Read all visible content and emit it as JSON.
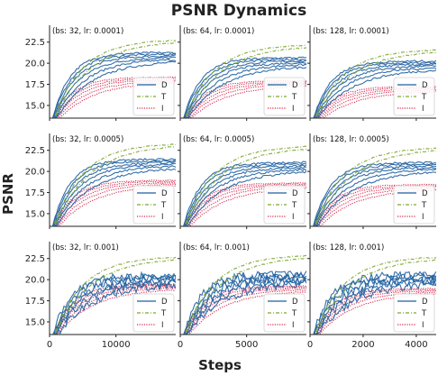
{
  "chart_data": {
    "type": "line",
    "title": "PSNR Dynamics",
    "xlabel": "Steps",
    "ylabel": "PSNR",
    "ylim": [
      13.5,
      24.5
    ],
    "yticks": [
      "15.0",
      "17.5",
      "20.0",
      "22.5"
    ],
    "legend": {
      "placement": "right",
      "entries": [
        "D",
        "T",
        "I"
      ]
    },
    "colors": {
      "D": "#1f5fa0",
      "T": "#7fa832",
      "I": "#d4284e"
    },
    "columns": [
      {
        "xmax": 19000,
        "xticks": [
          0,
          10000
        ],
        "xtick_labels": [
          "0",
          "10000"
        ]
      },
      {
        "xmax": 9500,
        "xticks": [
          0,
          5000
        ],
        "xtick_labels": [
          "0",
          "5000"
        ]
      },
      {
        "xmax": 4750,
        "xticks": [
          0,
          2000,
          4000
        ],
        "xtick_labels": [
          "0",
          "2000",
          "4000"
        ]
      }
    ],
    "panels": [
      {
        "label": "(bs: 32, lr: 0.0001)",
        "final": {
          "D": 20.8,
          "T": 22.8,
          "I": 18.1
        }
      },
      {
        "label": "(bs: 64, lr: 0.0001)",
        "final": {
          "D": 20.2,
          "T": 22.2,
          "I": 17.7
        }
      },
      {
        "label": "(bs: 128, lr: 0.0001)",
        "final": {
          "D": 19.8,
          "T": 21.6,
          "I": 17.0
        }
      },
      {
        "label": "(bs: 32, lr: 0.0005)",
        "final": {
          "D": 21.0,
          "T": 23.3,
          "I": 18.7
        }
      },
      {
        "label": "(bs: 64, lr: 0.0005)",
        "final": {
          "D": 20.6,
          "T": 23.0,
          "I": 18.4
        }
      },
      {
        "label": "(bs: 128, lr: 0.0005)",
        "final": {
          "D": 20.6,
          "T": 22.8,
          "I": 18.2
        }
      },
      {
        "label": "(bs: 32, lr: 0.001)",
        "final": {
          "D": 20.0,
          "T": 22.7,
          "I": 19.2
        }
      },
      {
        "label": "(bs: 64, lr: 0.001)",
        "final": {
          "D": 20.2,
          "T": 22.9,
          "I": 19.0
        }
      },
      {
        "label": "(bs: 128, lr: 0.001)",
        "final": {
          "D": 20.1,
          "T": 22.7,
          "I": 18.7
        }
      }
    ]
  }
}
